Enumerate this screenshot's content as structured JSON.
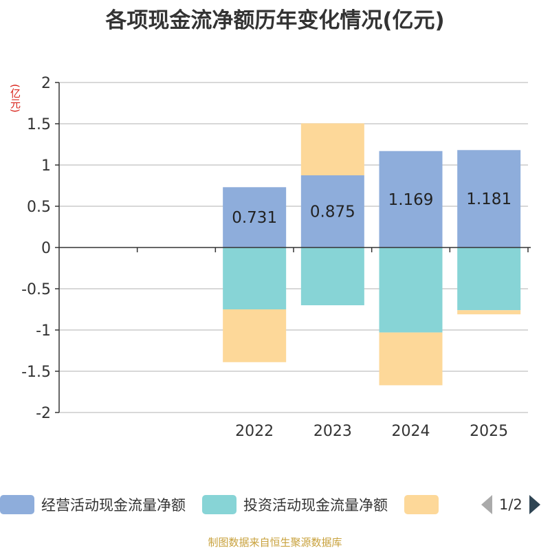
{
  "chart_data": {
    "type": "bar",
    "stacked": true,
    "title": "各项现金流净额历年变化情况(亿元)",
    "ylabel": "(亿元)",
    "xlabel": "",
    "ylim": [
      -2,
      2
    ],
    "yticks": [
      2,
      1.5,
      1,
      0.5,
      0,
      -0.5,
      -1,
      -1.5,
      -2
    ],
    "ytick_labels": [
      "2",
      "1.5",
      "1",
      "0.5",
      "0",
      "-0.5",
      "-1",
      "-1.5",
      "-2"
    ],
    "grid": true,
    "slots": 6,
    "categories": [
      "2022",
      "2023",
      "2024",
      "2025"
    ],
    "category_slots": [
      2,
      3,
      4,
      5
    ],
    "series": [
      {
        "name": "经营活动现金流量净额",
        "color": "#8eaddb",
        "values": [
          0.731,
          0.875,
          1.169,
          1.181
        ],
        "labels": [
          "0.731",
          "0.875",
          "1.169",
          "1.181"
        ]
      },
      {
        "name": "投资活动现金流量净额",
        "color": "#87d4d6",
        "values": [
          -0.75,
          -0.7,
          -1.03,
          -0.76
        ],
        "labels": null
      },
      {
        "name": "",
        "color": "#fdd899",
        "values": [
          -0.64,
          0.63,
          -0.64,
          -0.05
        ],
        "labels": null
      }
    ],
    "legend_position": "bottom"
  },
  "legend": {
    "items": [
      {
        "label": "经营活动现金流量净额",
        "color": "#8eaddb"
      },
      {
        "label": "投资活动现金流量净额",
        "color": "#87d4d6"
      },
      {
        "label": "",
        "color": "#fdd899"
      }
    ],
    "page_text": "1/2"
  },
  "source_text": "制图数据来自恒生聚源数据库"
}
